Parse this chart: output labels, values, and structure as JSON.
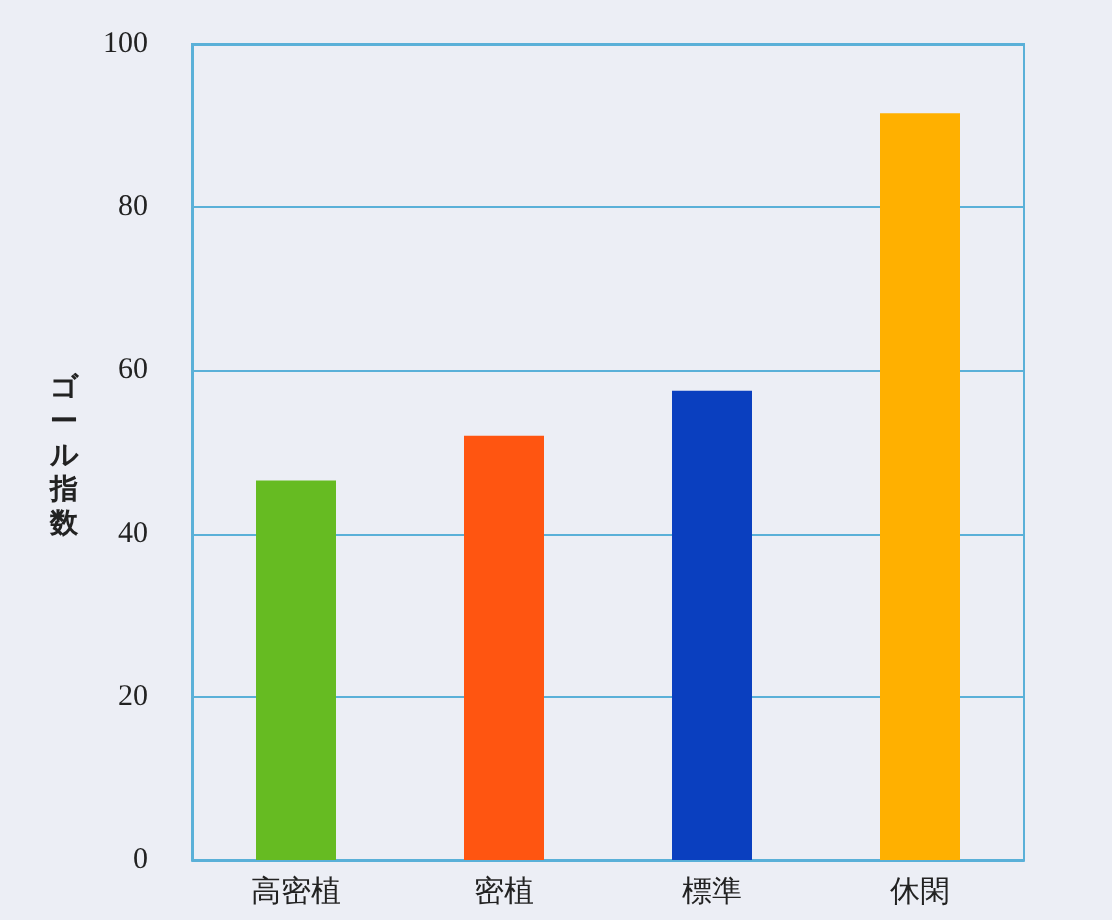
{
  "chart_data": {
    "type": "bar",
    "ylabel": "ゴール指数",
    "categories": [
      "高密植",
      "密植",
      "標準",
      "休閑"
    ],
    "values": [
      46.5,
      52,
      57.5,
      91.5
    ],
    "colors": [
      "#66bb22",
      "#ff5511",
      "#0a3fbf",
      "#ffb000"
    ],
    "ylim": [
      0,
      100
    ],
    "yticks": [
      0,
      20,
      40,
      60,
      80,
      100
    ],
    "grid": "y"
  }
}
